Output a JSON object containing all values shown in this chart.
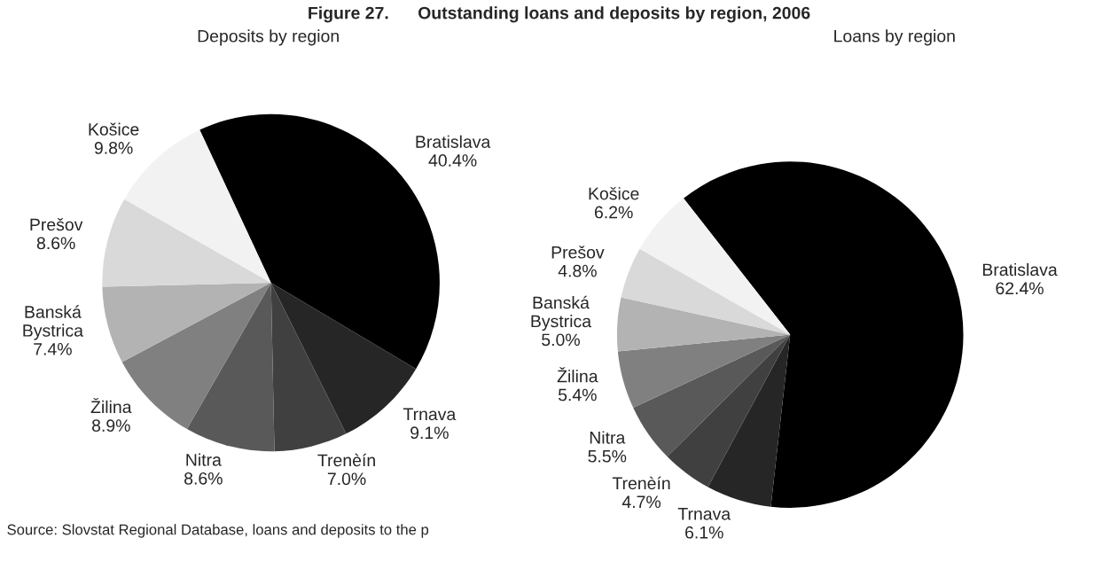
{
  "chart_data": [
    {
      "type": "pie",
      "title": "Figure 27.      Outstanding loans and deposits by region, 2006",
      "subtitle": "Deposits by region",
      "categories": [
        "Bratislava",
        "Trnava",
        "Trenèín",
        "Nitra",
        "Žilina",
        "Banská Bystrica",
        "Prešov",
        "Košice"
      ],
      "values": [
        40.4,
        9.1,
        7.0,
        8.6,
        8.9,
        7.4,
        8.6,
        9.8
      ],
      "colors": [
        "#000000",
        "#262626",
        "#404040",
        "#595959",
        "#808080",
        "#b3b3b3",
        "#d9d9d9",
        "#f2f2f2"
      ],
      "value_labels": [
        "40.4%",
        "9.1%",
        "7.0%",
        "8.6%",
        "8.9%",
        "7.4%",
        "8.6%",
        "9.8%"
      ],
      "annotations": [
        "Source: Slovstat Regional Database, loans and deposits to the p"
      ]
    },
    {
      "type": "pie",
      "subtitle": "Loans by region",
      "categories": [
        "Bratislava",
        "Trnava",
        "Trenèín",
        "Nitra",
        "Žilina",
        "Banská Bystrica",
        "Prešov",
        "Košice"
      ],
      "values": [
        62.4,
        6.1,
        4.7,
        5.5,
        5.4,
        5.0,
        4.8,
        6.2
      ],
      "colors": [
        "#000000",
        "#262626",
        "#404040",
        "#595959",
        "#808080",
        "#b3b3b3",
        "#d9d9d9",
        "#f2f2f2"
      ],
      "value_labels": [
        "62.4%",
        "6.1%",
        "4.7%",
        "5.5%",
        "5.4%",
        "5.0%",
        "4.8%",
        "6.2%"
      ]
    }
  ]
}
